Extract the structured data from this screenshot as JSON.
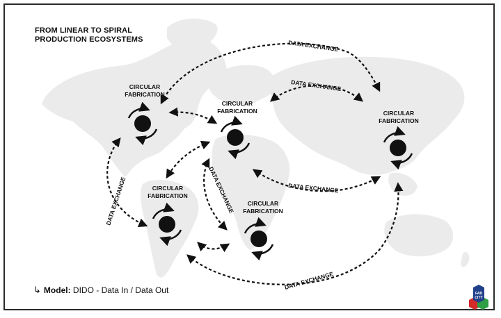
{
  "title": {
    "line1": "FROM LINEAR TO SPIRAL",
    "line2": "PRODUCTION ECOSYSTEMS"
  },
  "nodes": [
    {
      "id": "n-north-america",
      "line1": "CIRCULAR",
      "line2": "FABRICATION"
    },
    {
      "id": "n-europe",
      "line1": "CIRCULAR",
      "line2": "FABRICATION"
    },
    {
      "id": "n-asia",
      "line1": "CIRCULAR",
      "line2": "FABRICATION"
    },
    {
      "id": "n-south-america",
      "line1": "CIRCULAR",
      "line2": "FABRICATION"
    },
    {
      "id": "n-africa",
      "line1": "CIRCULAR",
      "line2": "FABRICATION"
    }
  ],
  "edge_labels": {
    "top": "DATA EXCHANGE",
    "europe_asia": "DATA EXCHANGE",
    "europe_asia_lower": "DATA EXCHANGE",
    "americas": "DATA EXCHANGE",
    "europe_africa": "DATA EXCHANGE",
    "bottom": "DATA EXCHANGE"
  },
  "model": {
    "prefix": "Model:",
    "text": "DIDO - Data In / Data Out"
  },
  "logo": {
    "line1": "FAB",
    "line2": "CITY"
  },
  "colors": {
    "ink": "#111111",
    "map": "#ebebeb",
    "logo_blue": "#22408a",
    "logo_red": "#d42a2a",
    "logo_green": "#2f9e44"
  }
}
